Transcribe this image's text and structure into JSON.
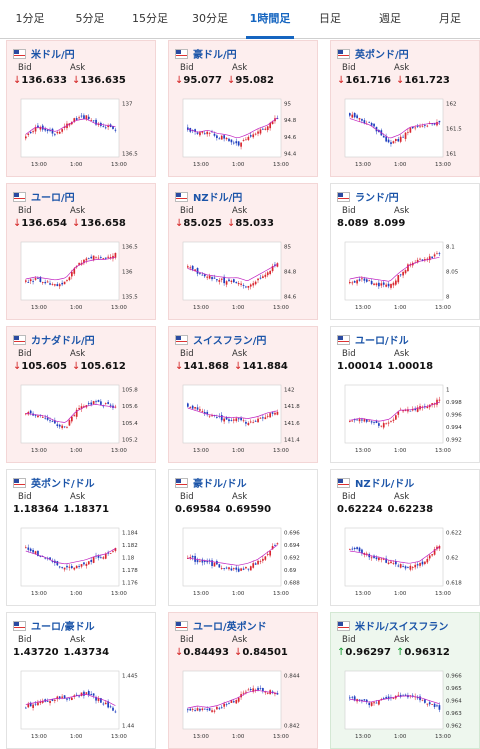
{
  "tabs": [
    {
      "label": "1分足"
    },
    {
      "label": "5分足"
    },
    {
      "label": "15分足"
    },
    {
      "label": "30分足"
    },
    {
      "label": "1時間足",
      "active": true
    },
    {
      "label": "日足"
    },
    {
      "label": "週足"
    },
    {
      "label": "月足"
    }
  ],
  "labels": {
    "bid": "Bid",
    "ask": "Ask"
  },
  "colors": {
    "accent": "#1565c0",
    "down": "#d32020",
    "up": "#139a2f",
    "candle_up": "#d9262f",
    "candle_down": "#1f3fbf",
    "ma": "#c020c0"
  },
  "cards": [
    {
      "pair": "米ドル/円",
      "bid": "136.633",
      "ask": "136.635",
      "dir": "down",
      "bg": "down",
      "y_ticks": [
        "137",
        "136.5"
      ],
      "x_ticks": [
        "13:00",
        "1:00",
        "13:00"
      ],
      "trend": [
        0.35,
        0.55,
        0.5,
        0.4,
        0.55,
        0.7,
        0.75,
        0.6,
        0.55,
        0.5
      ]
    },
    {
      "pair": "豪ドル/円",
      "bid": "95.077",
      "ask": "95.082",
      "dir": "down",
      "bg": "down",
      "y_ticks": [
        "95",
        "94.8",
        "94.6",
        "94.4"
      ],
      "x_ticks": [
        "13:00",
        "1:00",
        "13:00"
      ],
      "trend": [
        0.5,
        0.4,
        0.45,
        0.35,
        0.3,
        0.2,
        0.3,
        0.45,
        0.55,
        0.75
      ]
    },
    {
      "pair": "英ポンド/円",
      "bid": "161.716",
      "ask": "161.723",
      "dir": "down",
      "bg": "down",
      "y_ticks": [
        "162",
        "161.5",
        "161"
      ],
      "x_ticks": [
        "13:00",
        "1:00",
        "13:00"
      ],
      "trend": [
        0.8,
        0.7,
        0.6,
        0.4,
        0.2,
        0.3,
        0.5,
        0.55,
        0.6,
        0.6
      ]
    },
    {
      "pair": "ユーロ/円",
      "bid": "136.654",
      "ask": "136.658",
      "dir": "down",
      "bg": "down",
      "y_ticks": [
        "136.5",
        "136",
        "135.5"
      ],
      "x_ticks": [
        "13:00",
        "1:00",
        "13:00"
      ],
      "trend": [
        0.3,
        0.35,
        0.3,
        0.25,
        0.3,
        0.6,
        0.75,
        0.8,
        0.8,
        0.85
      ]
    },
    {
      "pair": "NZドル/円",
      "bid": "85.025",
      "ask": "85.033",
      "dir": "down",
      "bg": "down",
      "y_ticks": [
        "85",
        "84.8",
        "84.6"
      ],
      "x_ticks": [
        "13:00",
        "1:00",
        "13:00"
      ],
      "trend": [
        0.6,
        0.5,
        0.4,
        0.35,
        0.3,
        0.3,
        0.2,
        0.35,
        0.5,
        0.65
      ]
    },
    {
      "pair": "ランド/円",
      "bid": "8.089",
      "ask": "8.099",
      "dir": "none",
      "bg": "neutral",
      "y_ticks": [
        "8.1",
        "8.05",
        "8"
      ],
      "x_ticks": [
        "13:00",
        "1:00",
        "13:00"
      ],
      "trend": [
        0.3,
        0.35,
        0.3,
        0.25,
        0.2,
        0.45,
        0.65,
        0.75,
        0.8,
        0.85
      ]
    },
    {
      "pair": "カナダドル/円",
      "bid": "105.605",
      "ask": "105.612",
      "dir": "down",
      "bg": "down",
      "y_ticks": [
        "105.8",
        "105.6",
        "105.4",
        "105.2"
      ],
      "x_ticks": [
        "13:00",
        "1:00",
        "13:00"
      ],
      "trend": [
        0.55,
        0.5,
        0.45,
        0.3,
        0.25,
        0.55,
        0.7,
        0.75,
        0.7,
        0.65
      ]
    },
    {
      "pair": "スイスフラン/円",
      "bid": "141.868",
      "ask": "141.884",
      "dir": "down",
      "bg": "down",
      "y_ticks": [
        "142",
        "141.8",
        "141.6",
        "141.4"
      ],
      "x_ticks": [
        "13:00",
        "1:00",
        "13:00"
      ],
      "trend": [
        0.7,
        0.6,
        0.5,
        0.45,
        0.4,
        0.4,
        0.35,
        0.4,
        0.5,
        0.55
      ]
    },
    {
      "pair": "ユーロ/ドル",
      "bid": "1.00014",
      "ask": "1.00018",
      "dir": "none",
      "bg": "neutral",
      "y_ticks": [
        "1",
        "0.998",
        "0.996",
        "0.994",
        "0.992"
      ],
      "x_ticks": [
        "13:00",
        "1:00",
        "13:00"
      ],
      "trend": [
        0.35,
        0.4,
        0.35,
        0.3,
        0.35,
        0.6,
        0.6,
        0.65,
        0.7,
        0.8
      ]
    },
    {
      "pair": "英ポンド/ドル",
      "bid": "1.18364",
      "ask": "1.18371",
      "dir": "none",
      "bg": "neutral",
      "y_ticks": [
        "1.184",
        "1.182",
        "1.18",
        "1.178",
        "1.176"
      ],
      "x_ticks": [
        "13:00",
        "1:00",
        "13:00"
      ],
      "trend": [
        0.7,
        0.6,
        0.5,
        0.35,
        0.3,
        0.35,
        0.4,
        0.5,
        0.55,
        0.7
      ]
    },
    {
      "pair": "豪ドル/ドル",
      "bid": "0.69584",
      "ask": "0.69590",
      "dir": "none",
      "bg": "neutral",
      "y_ticks": [
        "0.696",
        "0.694",
        "0.692",
        "0.69",
        "0.688"
      ],
      "x_ticks": [
        "13:00",
        "1:00",
        "13:00"
      ],
      "trend": [
        0.5,
        0.45,
        0.4,
        0.35,
        0.3,
        0.25,
        0.3,
        0.4,
        0.6,
        0.8
      ]
    },
    {
      "pair": "NZドル/ドル",
      "bid": "0.62224",
      "ask": "0.62238",
      "dir": "none",
      "bg": "neutral",
      "y_ticks": [
        "0.622",
        "0.62",
        "0.618"
      ],
      "x_ticks": [
        "13:00",
        "1:00",
        "13:00"
      ],
      "trend": [
        0.7,
        0.65,
        0.55,
        0.5,
        0.4,
        0.35,
        0.3,
        0.35,
        0.55,
        0.75
      ]
    },
    {
      "pair": "ユーロ/豪ドル",
      "bid": "1.43720",
      "ask": "1.43734",
      "dir": "none",
      "bg": "neutral",
      "y_ticks": [
        "1.445",
        "1.44"
      ],
      "x_ticks": [
        "13:00",
        "1:00",
        "13:00"
      ],
      "trend": [
        0.4,
        0.45,
        0.5,
        0.55,
        0.55,
        0.6,
        0.65,
        0.55,
        0.45,
        0.3
      ]
    },
    {
      "pair": "ユーロ/英ポンド",
      "bid": "0.84493",
      "ask": "0.84501",
      "dir": "down",
      "bg": "down",
      "y_ticks": [
        "0.844",
        "0.842"
      ],
      "x_ticks": [
        "13:00",
        "1:00",
        "13:00"
      ],
      "trend": [
        0.3,
        0.35,
        0.3,
        0.35,
        0.45,
        0.55,
        0.7,
        0.75,
        0.7,
        0.65
      ]
    },
    {
      "pair": "米ドル/スイスフラン",
      "bid": "0.96297",
      "ask": "0.96312",
      "dir": "up",
      "bg": "up",
      "y_ticks": [
        "0.966",
        "0.965",
        "0.964",
        "0.963",
        "0.962"
      ],
      "x_ticks": [
        "13:00",
        "1:00",
        "13:00"
      ],
      "trend": [
        0.55,
        0.5,
        0.45,
        0.5,
        0.55,
        0.6,
        0.6,
        0.55,
        0.45,
        0.35
      ]
    }
  ]
}
